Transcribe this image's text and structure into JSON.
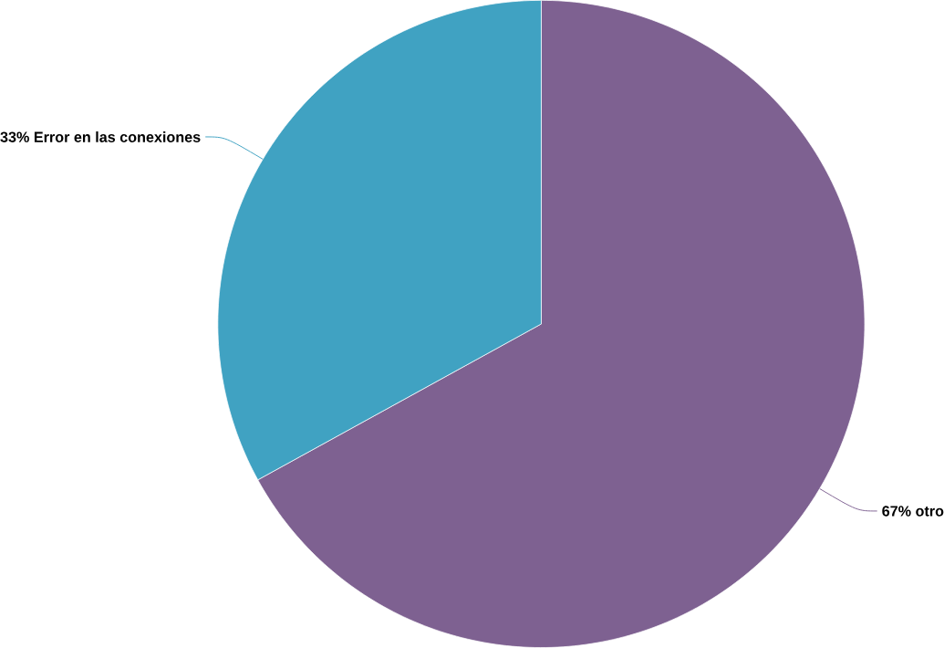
{
  "chart_data": {
    "type": "pie",
    "categories": [
      "otro",
      "Error en las conexiones"
    ],
    "values": [
      67,
      33
    ],
    "value_labels": [
      "67%",
      "33%"
    ],
    "colors": [
      "#7e6191",
      "#40a2c2"
    ]
  }
}
